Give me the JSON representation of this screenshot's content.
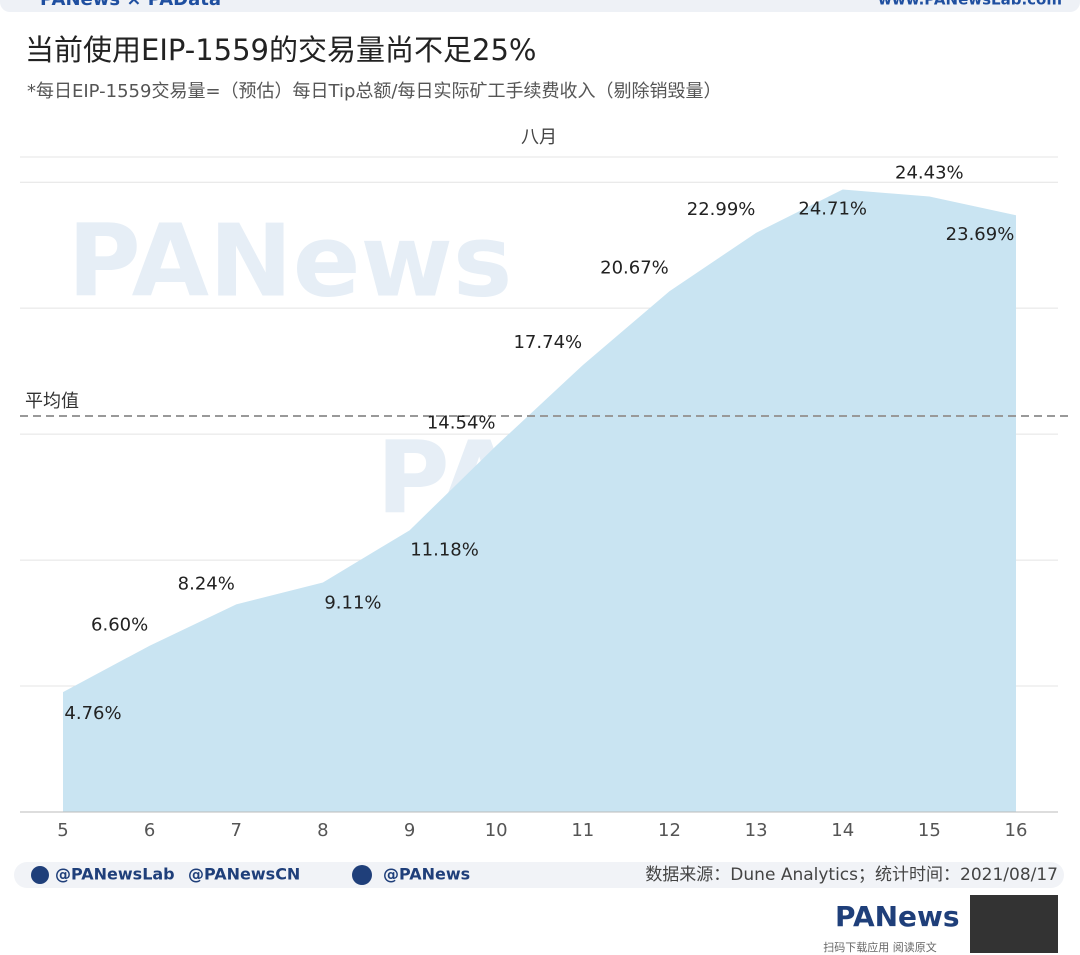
{
  "header": {
    "brand": "PANews × PAData",
    "site": "www.PANewsLab.com"
  },
  "chart_data": {
    "type": "area",
    "title": "当前使用EIP-1559的交易量尚不足25%",
    "subtitle": "*每日EIP-1559交易量=（预估）每日Tip总额/每日实际矿工手续费收入（剔除销毁量）",
    "x_label": "八月",
    "categories": [
      "5",
      "6",
      "7",
      "8",
      "9",
      "10",
      "11",
      "12",
      "13",
      "14",
      "15",
      "16"
    ],
    "values": [
      4.76,
      6.6,
      8.24,
      9.11,
      11.18,
      14.54,
      17.74,
      20.67,
      22.99,
      24.71,
      24.43,
      23.69
    ],
    "value_labels": [
      "4.76%",
      "6.60%",
      "8.24%",
      "9.11%",
      "11.18%",
      "14.54%",
      "17.74%",
      "20.67%",
      "22.99%",
      "24.71%",
      "24.43%",
      "23.69%"
    ],
    "color": "#c9e4f2",
    "ylim": [
      0,
      26
    ],
    "yticks": [
      0,
      5,
      10,
      15,
      20,
      25
    ],
    "grid": true,
    "average": {
      "label": "平均值",
      "value": 15.72
    }
  },
  "watermarks": [
    "PANews",
    "PAData"
  ],
  "footer": {
    "handles": [
      "@PANewsLab",
      "@PANewsCN",
      "@PANews"
    ],
    "source": "数据来源：Dune Analytics；统计时间：2021/08/17",
    "logo": "PANews",
    "qr_caption": "扫码下载应用 阅读原文"
  }
}
